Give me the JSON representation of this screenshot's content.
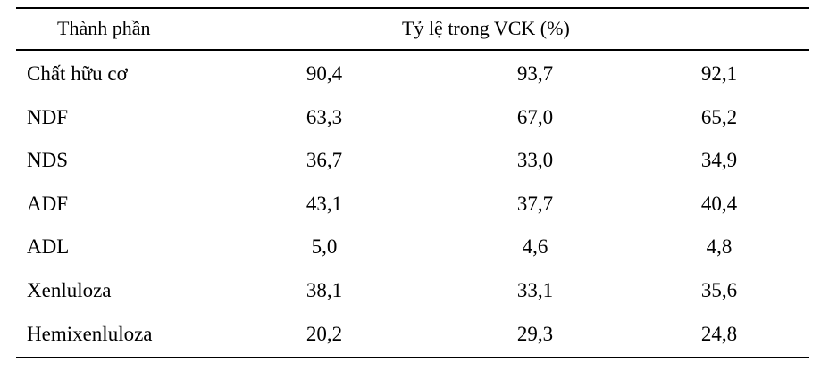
{
  "table": {
    "header": {
      "component": "Thành phần",
      "ratio": "Tỷ lệ trong VCK (%)"
    },
    "rows": [
      {
        "name": "Chất hữu cơ",
        "v1": "90,4",
        "v2": "93,7",
        "v3": "92,1"
      },
      {
        "name": "NDF",
        "v1": "63,3",
        "v2": "67,0",
        "v3": "65,2"
      },
      {
        "name": "NDS",
        "v1": "36,7",
        "v2": "33,0",
        "v3": "34,9"
      },
      {
        "name": "ADF",
        "v1": "43,1",
        "v2": "37,7",
        "v3": "40,4"
      },
      {
        "name": "ADL",
        "v1": "5,0",
        "v2": "4,6",
        "v3": "4,8"
      },
      {
        "name": "Xenluloza",
        "v1": "38,1",
        "v2": "33,1",
        "v3": "35,6"
      },
      {
        "name": "Hemixenluloza",
        "v1": "20,2",
        "v2": "29,3",
        "v3": "24,8"
      }
    ]
  }
}
